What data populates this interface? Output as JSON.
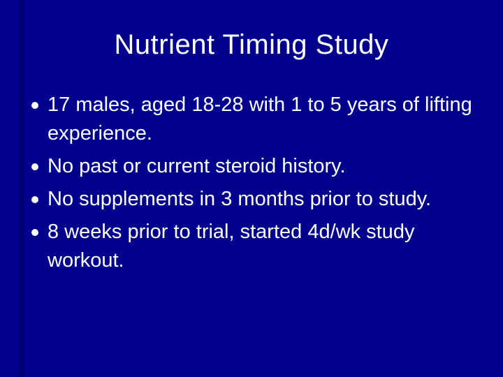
{
  "slide": {
    "title": "Nutrient Timing Study",
    "bullets": [
      "17 males, aged 18-28 with 1 to 5 years of lifting experience.",
      "No past or current steroid history.",
      "No supplements in 3 months prior to study.",
      "8 weeks prior to trial, started 4d/wk study workout."
    ],
    "colors": {
      "background": "#00008C",
      "left_strip": "#000072",
      "text": "#FFFFFF",
      "bullet_marker": "#FFFFFF"
    }
  }
}
